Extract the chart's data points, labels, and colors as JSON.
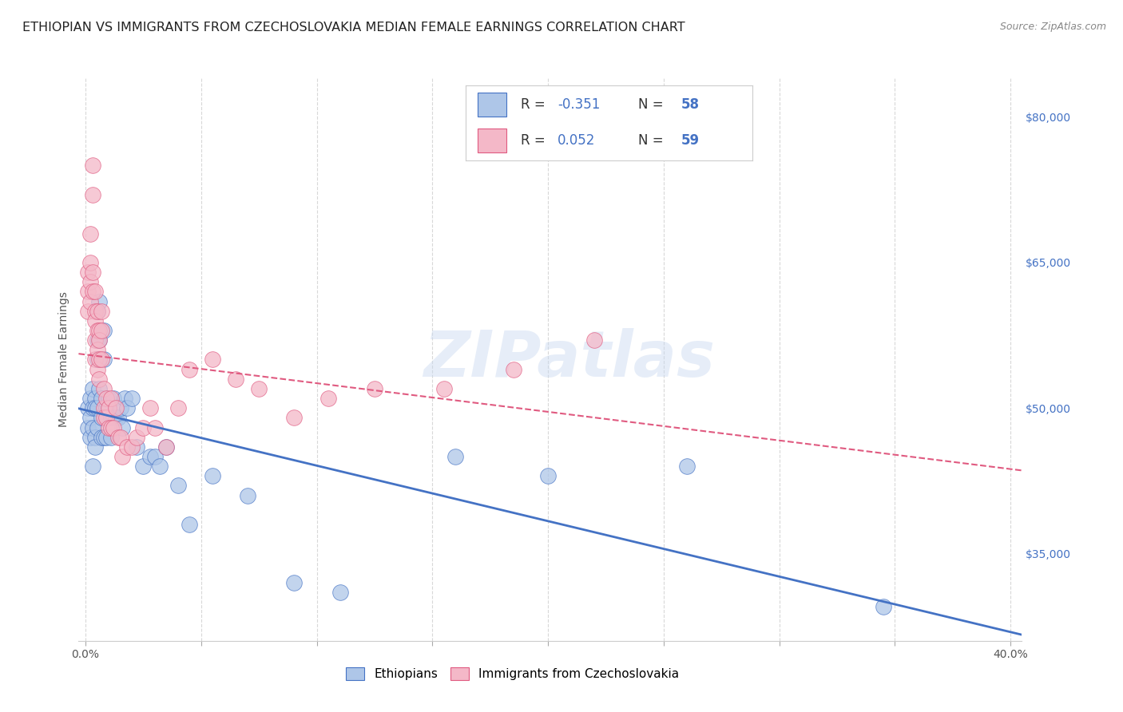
{
  "title": "ETHIOPIAN VS IMMIGRANTS FROM CZECHOSLOVAKIA MEDIAN FEMALE EARNINGS CORRELATION CHART",
  "source": "Source: ZipAtlas.com",
  "ylabel": "Median Female Earnings",
  "ylabel_right_ticks": [
    "$80,000",
    "$65,000",
    "$50,000",
    "$35,000"
  ],
  "ylabel_right_vals": [
    80000,
    65000,
    50000,
    35000
  ],
  "xlim": [
    -0.003,
    0.405
  ],
  "ylim": [
    26000,
    84000
  ],
  "watermark": "ZIPatlas",
  "scatter_ethiopians_color": "#aec6e8",
  "scatter_czech_color": "#f4b8c8",
  "line_ethiopians_color": "#4472c4",
  "line_czech_color": "#e05a80",
  "legend_blue_color": "#4472c4",
  "grid_color": "#d8d8d8",
  "bg_color": "#ffffff",
  "title_fontsize": 11.5,
  "axis_label_fontsize": 10,
  "tick_fontsize": 10,
  "ethiopians_x": [
    0.001,
    0.001,
    0.002,
    0.002,
    0.002,
    0.003,
    0.003,
    0.003,
    0.003,
    0.004,
    0.004,
    0.004,
    0.004,
    0.005,
    0.005,
    0.005,
    0.005,
    0.005,
    0.006,
    0.006,
    0.006,
    0.007,
    0.007,
    0.007,
    0.008,
    0.008,
    0.008,
    0.009,
    0.009,
    0.01,
    0.01,
    0.011,
    0.011,
    0.012,
    0.012,
    0.013,
    0.014,
    0.015,
    0.016,
    0.017,
    0.018,
    0.02,
    0.022,
    0.025,
    0.028,
    0.03,
    0.032,
    0.035,
    0.04,
    0.045,
    0.055,
    0.07,
    0.09,
    0.11,
    0.16,
    0.2,
    0.26,
    0.345
  ],
  "ethiopians_y": [
    50000,
    48000,
    49000,
    47000,
    51000,
    52000,
    50000,
    48000,
    44000,
    51000,
    47000,
    50000,
    46000,
    60000,
    57000,
    55000,
    50000,
    48000,
    61000,
    57000,
    52000,
    49000,
    47000,
    51000,
    58000,
    55000,
    47000,
    50000,
    47000,
    51000,
    50000,
    49000,
    47000,
    51000,
    49000,
    49000,
    49000,
    50000,
    48000,
    51000,
    50000,
    51000,
    46000,
    44000,
    45000,
    45000,
    44000,
    46000,
    42000,
    38000,
    43000,
    41000,
    32000,
    31000,
    45000,
    43000,
    44000,
    29500
  ],
  "czech_x": [
    0.001,
    0.001,
    0.001,
    0.002,
    0.002,
    0.002,
    0.002,
    0.003,
    0.003,
    0.003,
    0.003,
    0.004,
    0.004,
    0.004,
    0.004,
    0.004,
    0.005,
    0.005,
    0.005,
    0.005,
    0.006,
    0.006,
    0.006,
    0.006,
    0.007,
    0.007,
    0.007,
    0.008,
    0.008,
    0.008,
    0.009,
    0.009,
    0.01,
    0.01,
    0.011,
    0.011,
    0.012,
    0.013,
    0.014,
    0.015,
    0.016,
    0.018,
    0.02,
    0.022,
    0.025,
    0.028,
    0.03,
    0.035,
    0.04,
    0.045,
    0.055,
    0.065,
    0.075,
    0.09,
    0.105,
    0.125,
    0.155,
    0.185,
    0.22
  ],
  "czech_y": [
    64000,
    62000,
    60000,
    68000,
    65000,
    63000,
    61000,
    72000,
    75000,
    64000,
    62000,
    62000,
    60000,
    59000,
    57000,
    55000,
    60000,
    58000,
    56000,
    54000,
    58000,
    57000,
    55000,
    53000,
    60000,
    58000,
    55000,
    52000,
    50000,
    49000,
    51000,
    49000,
    50000,
    48000,
    51000,
    48000,
    48000,
    50000,
    47000,
    47000,
    45000,
    46000,
    46000,
    47000,
    48000,
    50000,
    48000,
    46000,
    50000,
    54000,
    55000,
    53000,
    52000,
    49000,
    51000,
    52000,
    52000,
    54000,
    57000
  ]
}
